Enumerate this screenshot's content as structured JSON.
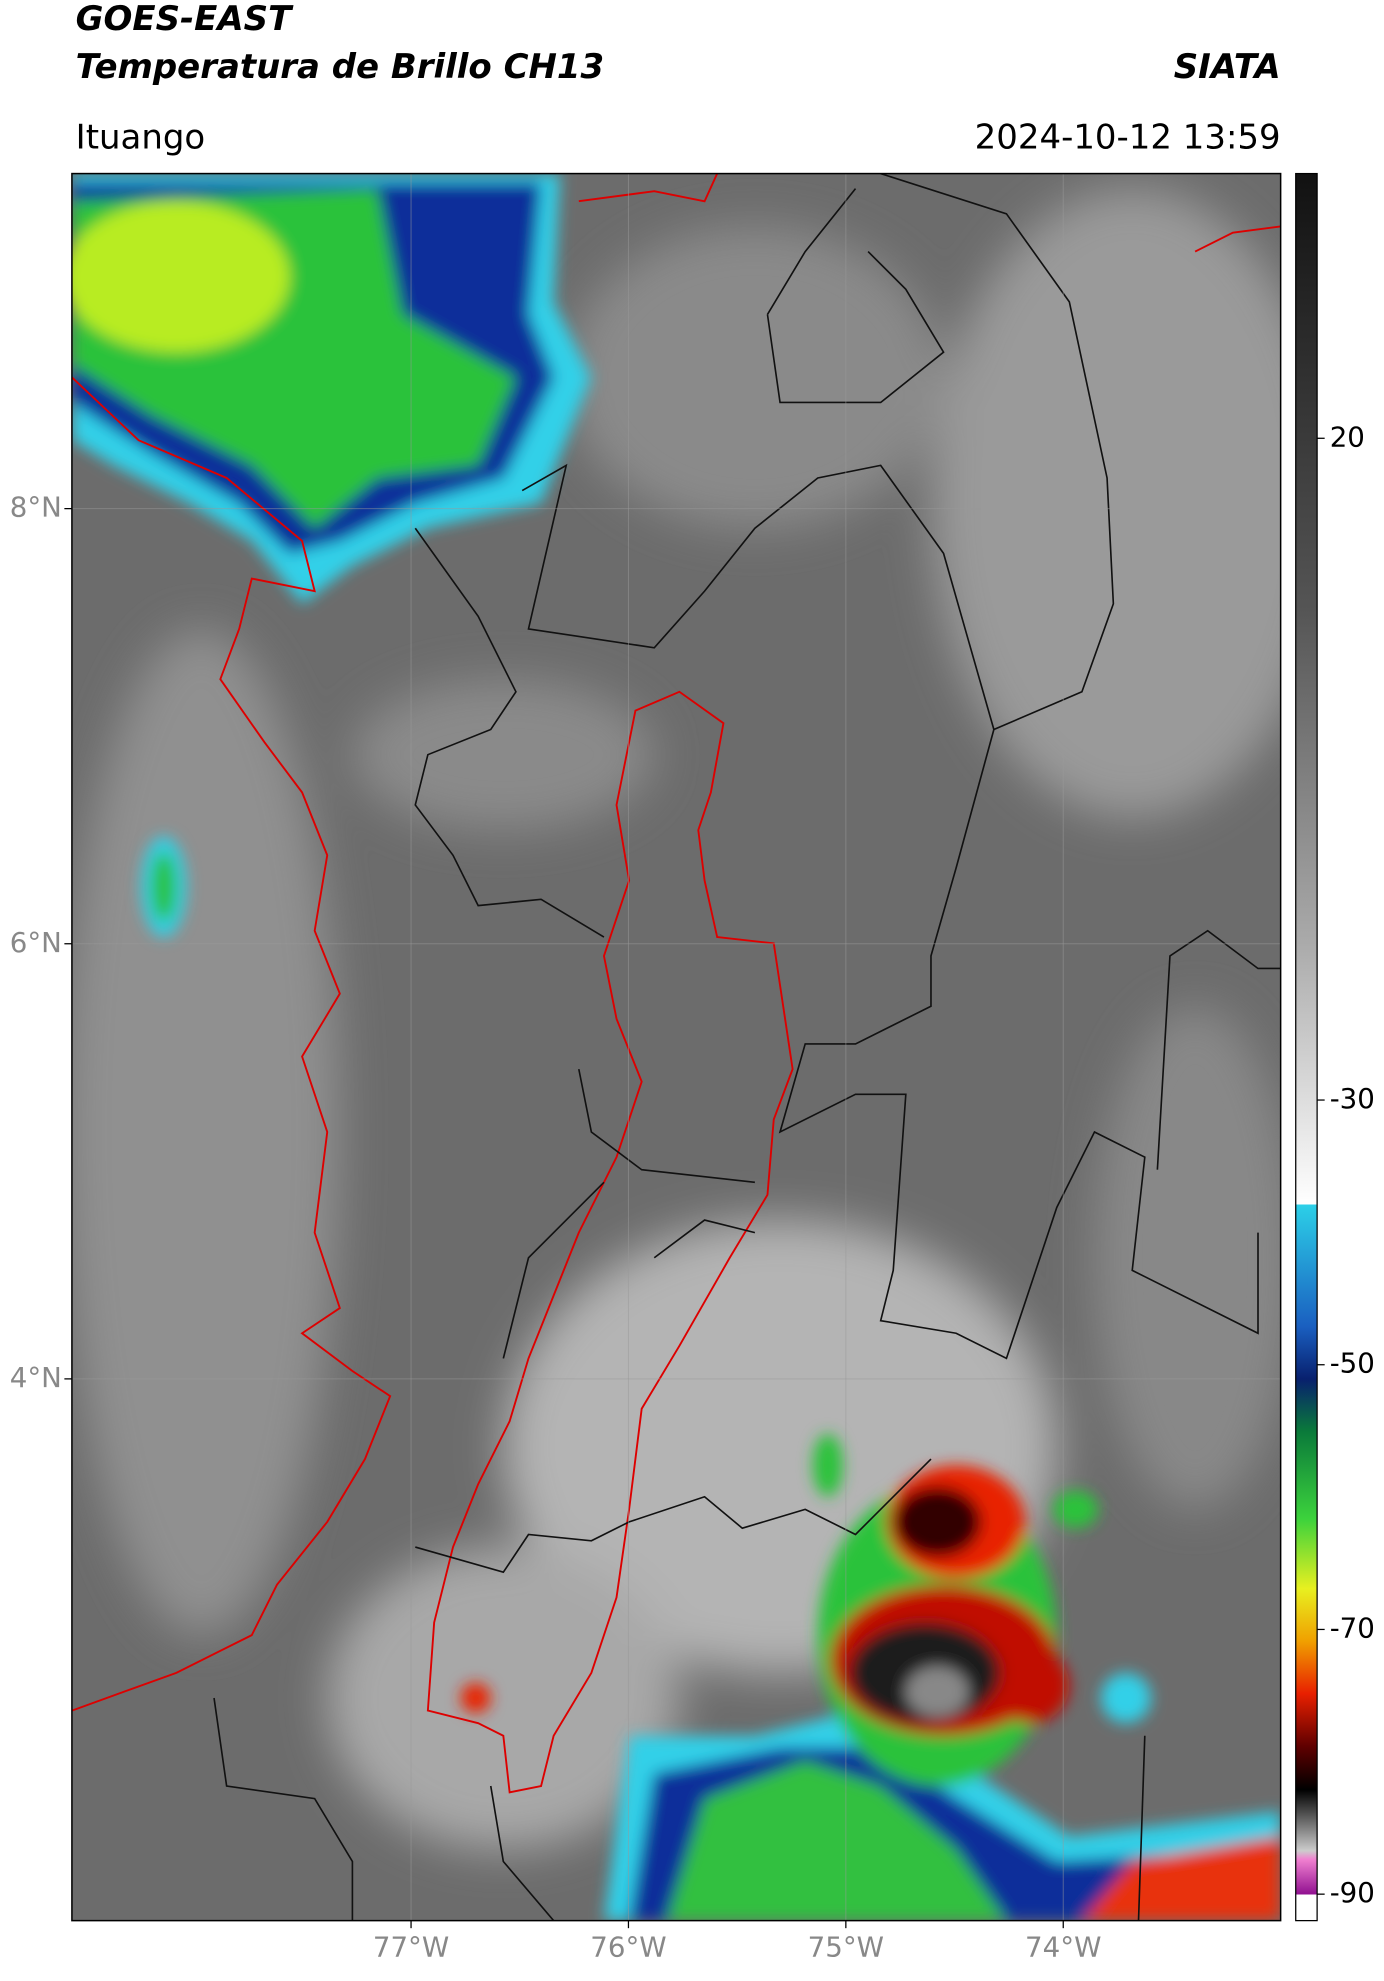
{
  "header": {
    "title": "GOES-EAST",
    "subtitle": "Temperatura de Brillo CH13",
    "source": "SIATA",
    "location": "Ituango",
    "datetime": "2024-10-12 13:59"
  },
  "map": {
    "xlim": [
      -78.56,
      -73.0
    ],
    "ylim": [
      1.51,
      9.54
    ],
    "xticks": [
      {
        "value": -77,
        "label": "77°W"
      },
      {
        "value": -76,
        "label": "76°W"
      },
      {
        "value": -75,
        "label": "75°W"
      },
      {
        "value": -74,
        "label": "74°W"
      }
    ],
    "yticks": [
      {
        "value": 8,
        "label": "8°N"
      },
      {
        "value": 6,
        "label": "6°N"
      },
      {
        "value": 4,
        "label": "4°N"
      }
    ],
    "grid": true
  },
  "colorbar": {
    "lim": [
      -92,
      40
    ],
    "ticks": [
      20,
      -30,
      -50,
      -70,
      -90
    ]
  }
}
